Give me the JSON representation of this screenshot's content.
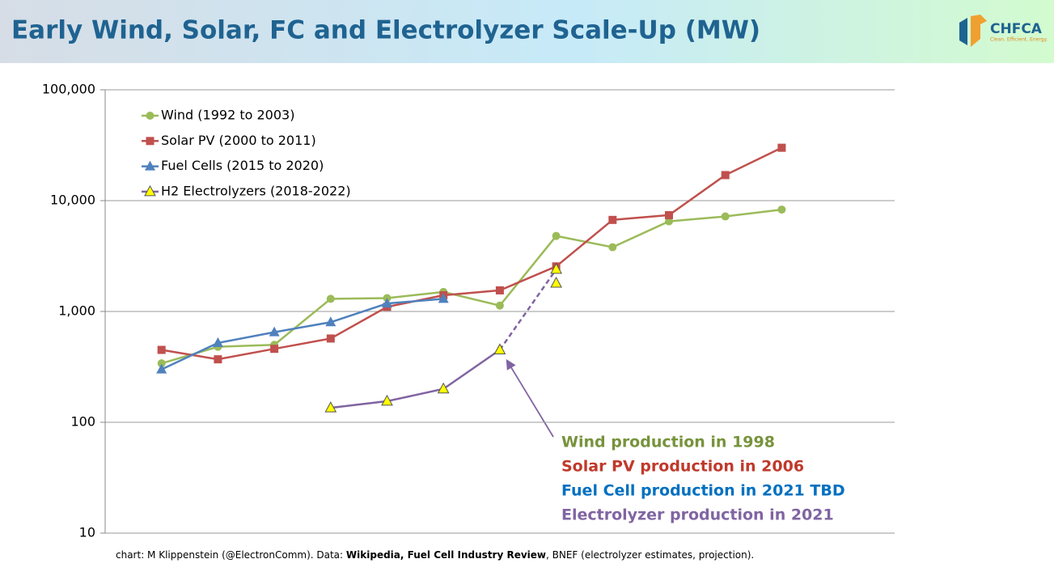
{
  "chart_data": {
    "type": "line",
    "title": "Early Wind, Solar, FC and Electrolyzer Scale-Up (MW)",
    "categories": [
      null,
      null,
      null,
      null,
      null,
      null,
      null,
      null,
      null,
      null,
      null,
      null
    ],
    "log_scale": true,
    "grid": true,
    "legend": "upper left",
    "ylim": [
      10,
      100000
    ],
    "yticks": [
      {
        "value": 100000,
        "label": "100,000"
      },
      {
        "value": 10000,
        "label": "10,000"
      },
      {
        "value": 1000,
        "label": "1,000"
      },
      100,
      10
    ],
    "series": [
      {
        "name": "Wind (1992 to 2003)",
        "color": "#9bbb59",
        "marker": "circle",
        "values": [
          340,
          480,
          500,
          1300,
          1320,
          1500,
          1130,
          4800,
          3800,
          6500,
          7200,
          8300
        ]
      },
      {
        "name": "Solar PV (2000 to 2011)",
        "color": "#c0504d",
        "marker": "square",
        "values": [
          450,
          370,
          460,
          570,
          1100,
          1400,
          1550,
          2550,
          6700,
          7400,
          17000,
          30000
        ]
      },
      {
        "name": "Fuel Cells (2015 to 2020)",
        "color": "#4f81bd",
        "marker": "triangle",
        "values": [
          300,
          520,
          650,
          800,
          1180,
          1300,
          null,
          null,
          null,
          null,
          null,
          null
        ]
      },
      {
        "name": "H2 Electrolyzers (2018-2022)",
        "color": "#8064a2",
        "marker": "triangle",
        "marker_color": "#ffff00",
        "values": [
          null,
          null,
          null,
          135,
          155,
          200,
          450,
          null,
          null,
          null,
          null,
          null
        ]
      },
      {
        "color": "#8064a2",
        "marker": "triangle",
        "marker_color": "#ffff00",
        "dashed": true,
        "values": [
          null,
          null,
          null,
          null,
          null,
          null,
          450,
          2400,
          null,
          null,
          null,
          null
        ]
      },
      {
        "color": "#8064a2",
        "marker": "triangle",
        "marker_color": "#ffff00",
        "line": false,
        "values": [
          null,
          null,
          null,
          null,
          null,
          null,
          null,
          1800,
          null,
          null,
          null,
          null
        ]
      }
    ],
    "annotations": [
      {
        "text": "Wind production in 1998",
        "color": "#77933c"
      },
      {
        "text": "Solar PV production in 2006",
        "color": "#c0392b"
      },
      {
        "text": "Fuel Cell production in 2021 TBD",
        "color": "#0070c0"
      },
      {
        "text": "Electrolyzer production in 2021",
        "color": "#8064a2"
      }
    ]
  },
  "logo": {
    "name": "CHFCA",
    "tagline": "Clean. Efficient. Energy."
  },
  "footnote": {
    "parts": [
      "chart: M Klippenstein (@ElectronComm). Data: ",
      "Wikipedia, Fuel Cell Industry Review",
      ", BNEF (electrolyzer estimates, projection)."
    ]
  }
}
